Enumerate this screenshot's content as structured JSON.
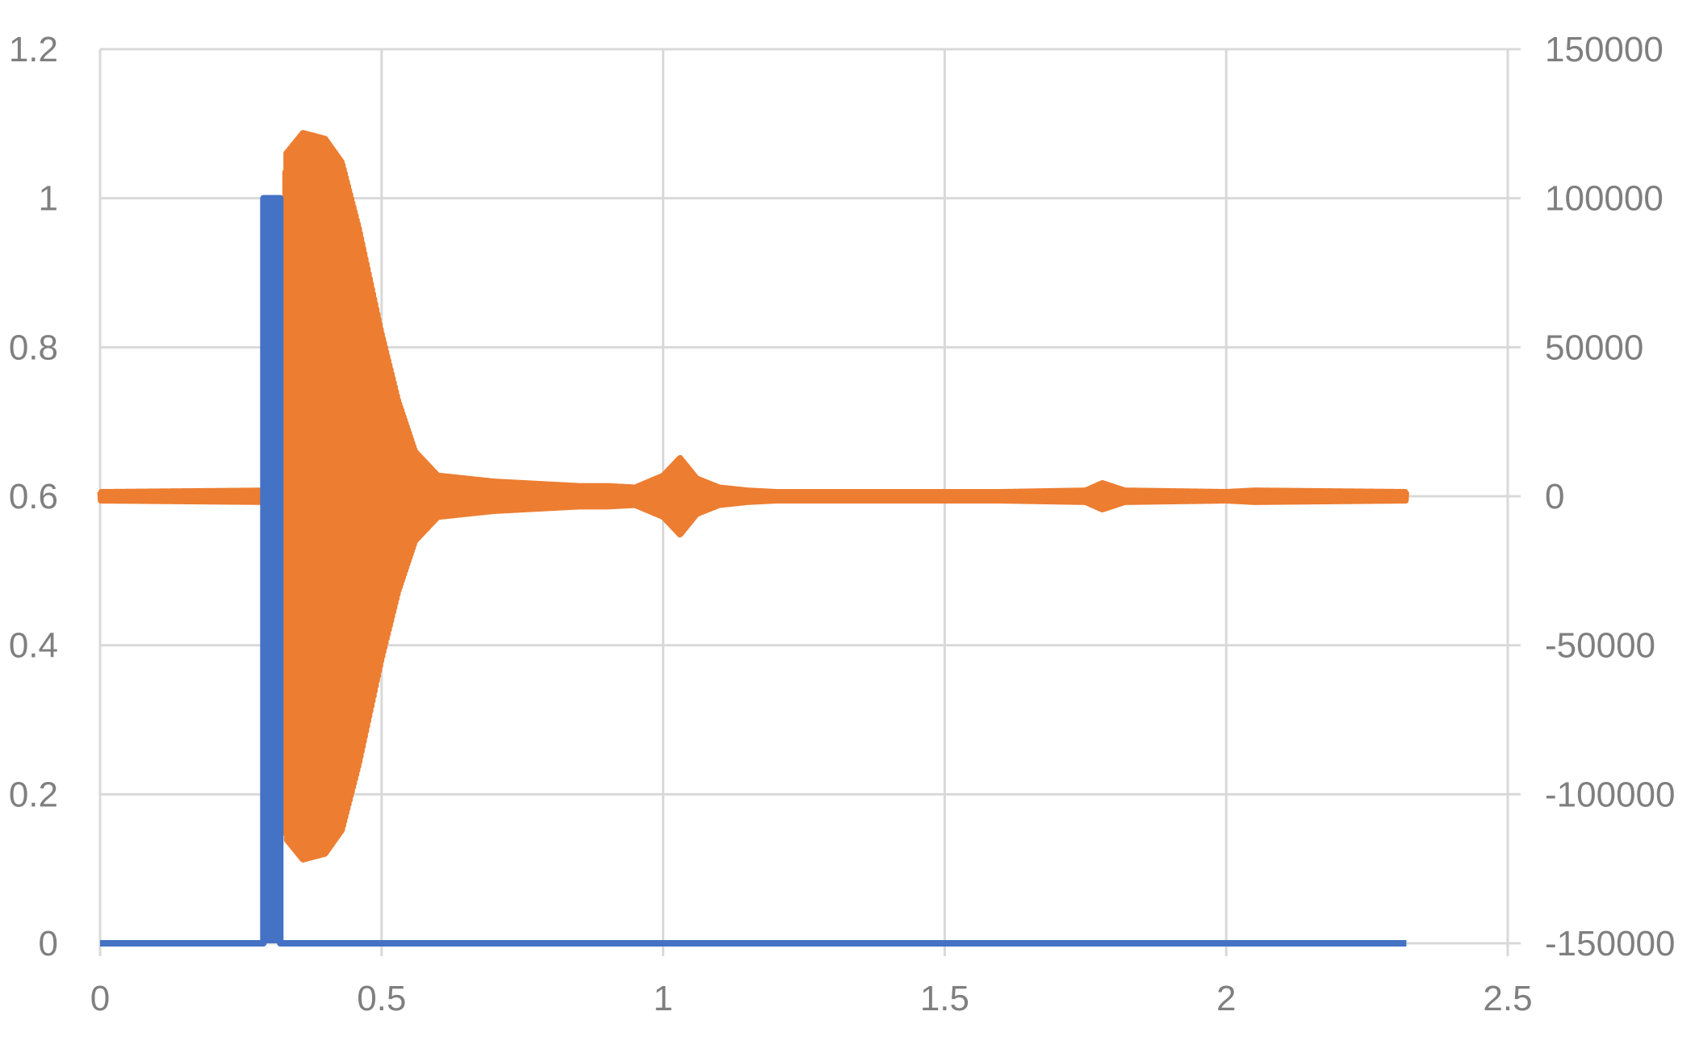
{
  "chart_data": {
    "type": "line",
    "title": "",
    "xlabel": "",
    "ylabel": "",
    "y2label": "",
    "xlim": [
      0,
      2.5
    ],
    "ylim": [
      0,
      1.2
    ],
    "y2lim": [
      -150000,
      150000
    ],
    "grid": true,
    "legend": "none",
    "x_ticks": [
      "0",
      "0.5",
      "1",
      "1.5",
      "2",
      "2.5"
    ],
    "y_ticks": [
      "0",
      "0.2",
      "0.4",
      "0.6",
      "0.8",
      "1",
      "1.2"
    ],
    "y2_ticks": [
      "-150000",
      "-100000",
      "-50000",
      "0",
      "50000",
      "100000",
      "150000"
    ],
    "series": [
      {
        "axis": "left",
        "color": "#4472c4",
        "x": [
          0,
          0.29,
          0.29,
          0.32,
          0.32,
          2.32
        ],
        "y": [
          0,
          0,
          1,
          1,
          0,
          0
        ]
      },
      {
        "axis": "right",
        "color": "#ed7d31",
        "x": [
          0,
          0.3,
          0.315,
          0.33,
          0.36,
          0.4,
          0.43,
          0.46,
          0.5,
          0.53,
          0.56,
          0.6,
          0.65,
          0.7,
          0.75,
          0.8,
          0.85,
          0.9,
          0.95,
          1.0,
          1.03,
          1.06,
          1.1,
          1.15,
          1.2,
          1.4,
          1.6,
          1.75,
          1.78,
          1.82,
          2.0,
          2.05,
          2.32
        ],
        "envelope": [
          1500,
          2000,
          45000,
          115000,
          122000,
          120000,
          112000,
          90000,
          55000,
          32000,
          15000,
          7000,
          6000,
          5000,
          4500,
          4000,
          3500,
          3500,
          3000,
          7000,
          13000,
          6000,
          3000,
          2000,
          1500,
          1500,
          1500,
          2000,
          4500,
          2000,
          1500,
          2000,
          1500
        ]
      }
    ]
  }
}
